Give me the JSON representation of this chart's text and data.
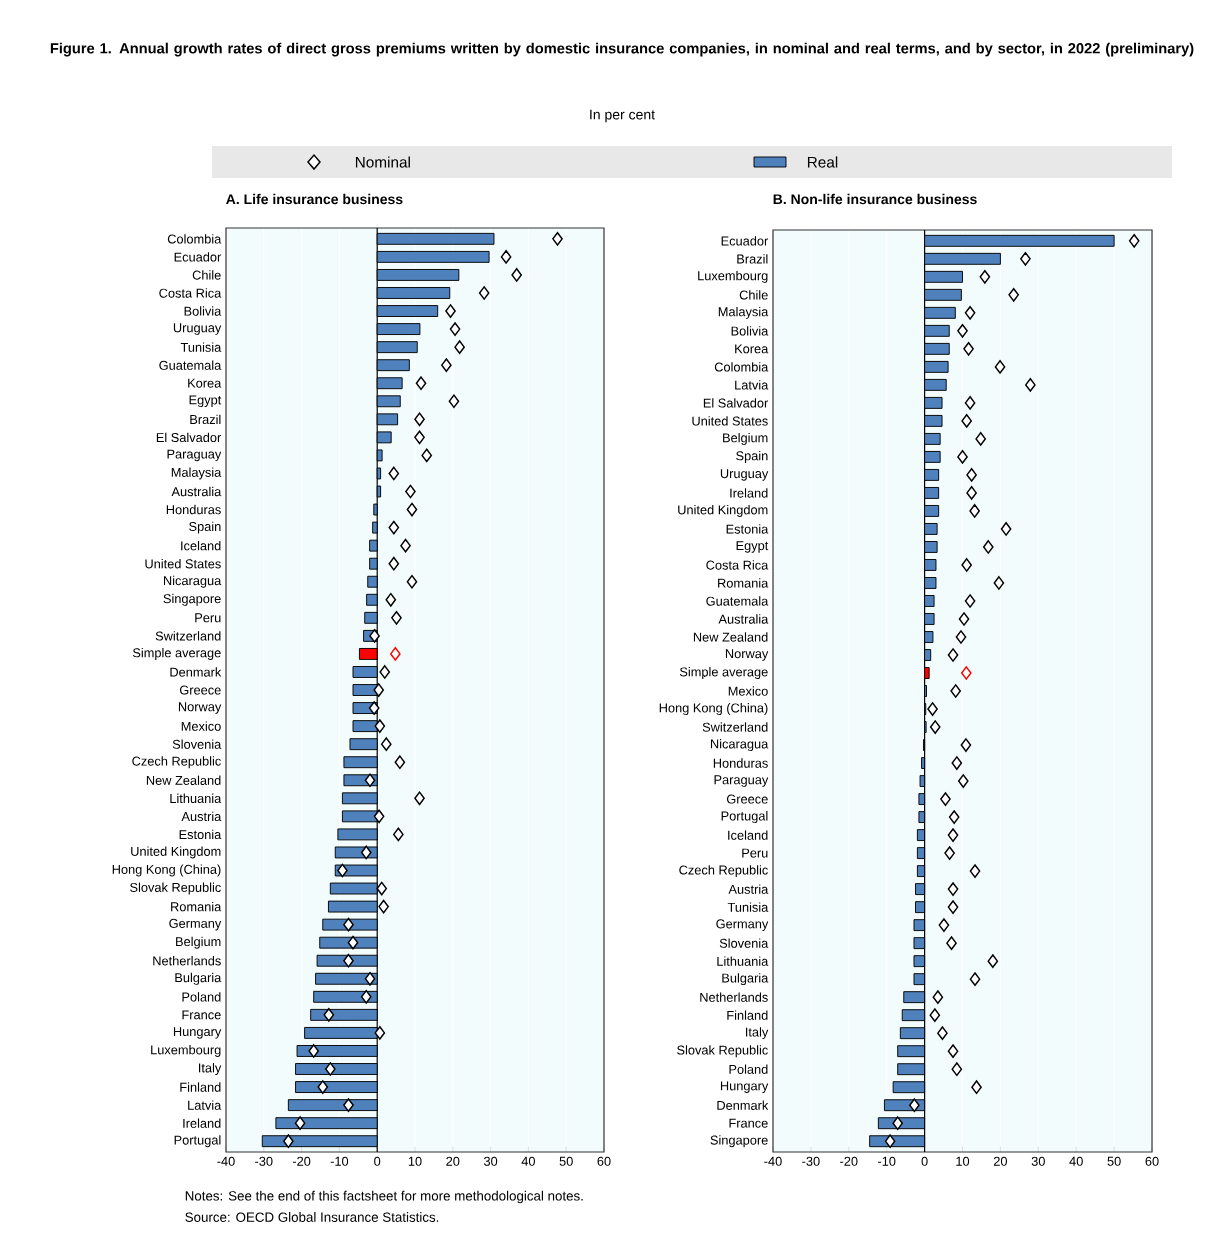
{
  "chart_data": [
    {
      "type": "other",
      "title": "Figure 1. Annual growth rates of direct gross premiums written by domestic insurance companies, in nominal and real terms, and by sector, in 2022 (preliminary)",
      "subtitle": "In per cent",
      "annotations": [
        "Notes: See the end of this factsheet for more methodological notes.",
        "Source: OECD Global Insurance Statistics."
      ]
    },
    {
      "type": "bar",
      "orientation": "horizontal",
      "title": "A. Life insurance business",
      "legend": "top",
      "grid": "x",
      "categories": [
        "Colombia",
        "Ecuador",
        "Chile",
        "Costa Rica",
        "Bolivia",
        "Uruguay",
        "Tunisia",
        "Guatemala",
        "Korea",
        "Egypt",
        "Brazil",
        "El Salvador",
        "Paraguay",
        "Malaysia",
        "Australia",
        "Honduras",
        "Spain",
        "Iceland",
        "United States",
        "Nicaragua",
        "Singapore",
        "Peru",
        "Switzerland",
        "Simple average",
        "Denmark",
        "Greece",
        "Norway",
        "Mexico",
        "Slovenia",
        "Czech Republic",
        "New Zealand",
        "Lithuania",
        "Austria",
        "Estonia",
        "United Kingdom",
        "Hong Kong (China)",
        "Slovak Republic",
        "Romania",
        "Germany",
        "Belgium",
        "Netherlands",
        "Bulgaria",
        "Poland",
        "France",
        "Hungary",
        "Luxembourg",
        "Italy",
        "Finland",
        "Latvia",
        "Ireland",
        "Portugal"
      ],
      "xlim": [
        -40,
        60
      ],
      "xticks": [
        -40,
        -30,
        -20,
        -10,
        0,
        10,
        20,
        30,
        40,
        50,
        60
      ],
      "series": [
        {
          "name": "Nominal",
          "type": "scatter",
          "marker": "diamond",
          "color": "#000000",
          "colors": [
            "#000000",
            "#000000",
            "#000000",
            "#000000",
            "#000000",
            "#000000",
            "#000000",
            "#000000",
            "#000000",
            "#000000",
            "#000000",
            "#000000",
            "#000000",
            "#000000",
            "#000000",
            "#000000",
            "#000000",
            "#000000",
            "#000000",
            "#000000",
            "#000000",
            "#000000",
            "#000000",
            "#ff0000",
            "#000000",
            "#000000",
            "#000000",
            "#000000",
            "#000000",
            "#000000",
            "#000000",
            "#000000",
            "#000000",
            "#000000",
            "#000000",
            "#000000",
            "#000000",
            "#000000",
            "#000000",
            "#000000",
            "#000000",
            "#000000",
            "#000000",
            "#000000",
            "#000000",
            "#000000",
            "#000000",
            "#000000",
            "#000000",
            "#000000",
            "#000000"
          ],
          "values": [
            47.7,
            34.1,
            36.9,
            28.3,
            19.4,
            20.6,
            21.8,
            18.3,
            11.6,
            20.3,
            11.2,
            11.2,
            13.1,
            4.4,
            8.8,
            9.2,
            4.4,
            7.5,
            4.4,
            9.2,
            3.6,
            5.1,
            -0.7,
            4.8,
            2.0,
            0.4,
            -0.8,
            0.7,
            2.4,
            6.0,
            -1.9,
            11.2,
            0.5,
            5.6,
            -2.9,
            -9.2,
            1.2,
            1.7,
            -7.6,
            -6.4,
            -7.6,
            -1.9,
            -2.9,
            -12.8,
            0.7,
            -16.8,
            -12.4,
            -14.4,
            -7.6,
            -20.4,
            -23.5
          ]
        },
        {
          "name": "Real",
          "type": "bar",
          "color": "#4f81bd",
          "colors": [
            "#4f81bd",
            "#4f81bd",
            "#4f81bd",
            "#4f81bd",
            "#4f81bd",
            "#4f81bd",
            "#4f81bd",
            "#4f81bd",
            "#4f81bd",
            "#4f81bd",
            "#4f81bd",
            "#4f81bd",
            "#4f81bd",
            "#4f81bd",
            "#4f81bd",
            "#4f81bd",
            "#4f81bd",
            "#4f81bd",
            "#4f81bd",
            "#4f81bd",
            "#4f81bd",
            "#4f81bd",
            "#4f81bd",
            "#ff0000",
            "#4f81bd",
            "#4f81bd",
            "#4f81bd",
            "#4f81bd",
            "#4f81bd",
            "#4f81bd",
            "#4f81bd",
            "#4f81bd",
            "#4f81bd",
            "#4f81bd",
            "#4f81bd",
            "#4f81bd",
            "#4f81bd",
            "#4f81bd",
            "#4f81bd",
            "#4f81bd",
            "#4f81bd",
            "#4f81bd",
            "#4f81bd",
            "#4f81bd",
            "#4f81bd",
            "#4f81bd",
            "#4f81bd",
            "#4f81bd",
            "#4f81bd",
            "#4f81bd",
            "#4f81bd"
          ],
          "values": [
            30.9,
            29.6,
            21.6,
            19.2,
            16.0,
            11.3,
            10.6,
            8.5,
            6.6,
            6.1,
            5.4,
            3.7,
            1.3,
            0.9,
            0.9,
            -0.9,
            -1.2,
            -2.0,
            -2.0,
            -2.5,
            -2.8,
            -3.3,
            -3.6,
            -4.7,
            -6.4,
            -6.4,
            -6.4,
            -6.4,
            -7.2,
            -8.8,
            -8.8,
            -9.2,
            -9.2,
            -10.4,
            -11.1,
            -11.1,
            -12.4,
            -12.9,
            -14.4,
            -15.2,
            -15.9,
            -16.3,
            -16.8,
            -17.6,
            -19.2,
            -21.2,
            -21.6,
            -21.6,
            -23.5,
            -26.8,
            -30.4
          ]
        }
      ]
    },
    {
      "type": "bar",
      "orientation": "horizontal",
      "title": "B. Non-life insurance business",
      "grid": "x",
      "categories": [
        "Ecuador",
        "Brazil",
        "Luxembourg",
        "Chile",
        "Malaysia",
        "Bolivia",
        "Korea",
        "Colombia",
        "Latvia",
        "El Salvador",
        "United States",
        "Belgium",
        "Spain",
        "Uruguay",
        "Ireland",
        "United Kingdom",
        "Estonia",
        "Egypt",
        "Costa Rica",
        "Romania",
        "Guatemala",
        "Australia",
        "New Zealand",
        "Norway",
        "Simple average",
        "Mexico",
        "Hong Kong (China)",
        "Switzerland",
        "Nicaragua",
        "Honduras",
        "Paraguay",
        "Greece",
        "Portugal",
        "Iceland",
        "Peru",
        "Czech Republic",
        "Austria",
        "Tunisia",
        "Germany",
        "Slovenia",
        "Lithuania",
        "Bulgaria",
        "Netherlands",
        "Finland",
        "Italy",
        "Slovak Republic",
        "Poland",
        "Hungary",
        "Denmark",
        "France",
        "Singapore"
      ],
      "xlim": [
        -40,
        60
      ],
      "xticks": [
        -40,
        -30,
        -20,
        -10,
        0,
        10,
        20,
        30,
        40,
        50,
        60
      ],
      "series": [
        {
          "type": "scatter",
          "marker": "diamond",
          "colors": [
            "#000000",
            "#000000",
            "#000000",
            "#000000",
            "#000000",
            "#000000",
            "#000000",
            "#000000",
            "#000000",
            "#000000",
            "#000000",
            "#000000",
            "#000000",
            "#000000",
            "#000000",
            "#000000",
            "#000000",
            "#000000",
            "#000000",
            "#000000",
            "#000000",
            "#000000",
            "#000000",
            "#000000",
            "#ff0000",
            "#000000",
            "#000000",
            "#000000",
            "#000000",
            "#000000",
            "#000000",
            "#000000",
            "#000000",
            "#000000",
            "#000000",
            "#000000",
            "#000000",
            "#000000",
            "#000000",
            "#000000",
            "#000000",
            "#000000",
            "#000000",
            "#000000",
            "#000000",
            "#000000",
            "#000000",
            "#000000",
            "#000000",
            "#000000",
            "#000000"
          ],
          "values": [
            55.3,
            26.6,
            15.9,
            23.5,
            12.0,
            10.0,
            11.6,
            19.9,
            27.9,
            12.0,
            11.1,
            14.8,
            10.0,
            12.4,
            12.4,
            13.2,
            21.5,
            16.8,
            11.1,
            19.6,
            12.0,
            10.4,
            9.6,
            7.5,
            11.0,
            8.2,
            2.1,
            2.8,
            10.9,
            8.5,
            10.2,
            5.5,
            7.8,
            7.5,
            6.6,
            13.3,
            7.5,
            7.5,
            5.1,
            7.1,
            18.0,
            13.3,
            3.5,
            2.7,
            4.7,
            7.5,
            8.5,
            13.7,
            -2.7,
            -7.1,
            -9.1
          ]
        },
        {
          "type": "bar",
          "colors": [
            "#4f81bd",
            "#4f81bd",
            "#4f81bd",
            "#4f81bd",
            "#4f81bd",
            "#4f81bd",
            "#4f81bd",
            "#4f81bd",
            "#4f81bd",
            "#4f81bd",
            "#4f81bd",
            "#4f81bd",
            "#4f81bd",
            "#4f81bd",
            "#4f81bd",
            "#4f81bd",
            "#4f81bd",
            "#4f81bd",
            "#4f81bd",
            "#4f81bd",
            "#4f81bd",
            "#4f81bd",
            "#4f81bd",
            "#4f81bd",
            "#ff0000",
            "#4f81bd",
            "#4f81bd",
            "#4f81bd",
            "#4f81bd",
            "#4f81bd",
            "#4f81bd",
            "#4f81bd",
            "#4f81bd",
            "#4f81bd",
            "#4f81bd",
            "#4f81bd",
            "#4f81bd",
            "#4f81bd",
            "#4f81bd",
            "#4f81bd",
            "#4f81bd",
            "#4f81bd",
            "#4f81bd",
            "#4f81bd",
            "#4f81bd",
            "#4f81bd",
            "#4f81bd",
            "#4f81bd",
            "#4f81bd",
            "#4f81bd",
            "#4f81bd"
          ],
          "values": [
            50.0,
            20.0,
            10.0,
            9.7,
            8.1,
            6.5,
            6.5,
            6.2,
            5.7,
            4.6,
            4.6,
            4.1,
            4.1,
            3.7,
            3.7,
            3.7,
            3.3,
            3.3,
            3.0,
            3.0,
            2.5,
            2.5,
            2.2,
            1.6,
            1.2,
            0.5,
            0.3,
            0.4,
            -0.3,
            -0.8,
            -1.2,
            -1.5,
            -1.5,
            -1.9,
            -1.9,
            -1.9,
            -2.4,
            -2.4,
            -2.8,
            -2.8,
            -2.8,
            -2.8,
            -5.5,
            -5.9,
            -6.4,
            -7.1,
            -7.1,
            -8.3,
            -10.6,
            -12.2,
            -14.5
          ]
        }
      ]
    }
  ]
}
